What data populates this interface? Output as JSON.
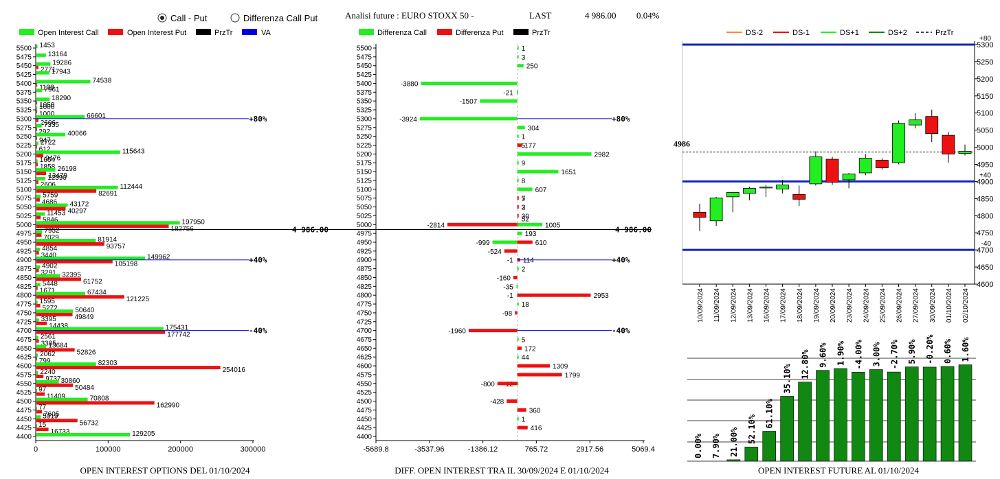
{
  "header": {
    "radio_call_put": "Call - Put",
    "radio_diff": "Differenza Call Put",
    "selected": "call_put",
    "analysis_title": "Analisi future : EURO STOXX 50 -",
    "last_label": "LAST",
    "last_value": "4 986.00",
    "change": "0.04%"
  },
  "colors": {
    "call": "#22ee22",
    "put": "#ee1111",
    "pricetr": "#000000",
    "va": "#0000dd",
    "dark_green": "#118811",
    "ds_minus2": "#ff8844",
    "ds_minus1": "#ee0000",
    "ds_plus1": "#22ee22",
    "ds_plus2": "#118811",
    "level": "#1122bb"
  },
  "chart_data": [
    {
      "type": "bar",
      "orientation": "horizontal",
      "title": "OPEN INTEREST OPTIONS DEL 01/10/2024",
      "legend": [
        "Open Interest Call",
        "Open Interest Put",
        "PrzTr",
        "VA"
      ],
      "strikes": [
        5500,
        5475,
        5450,
        5425,
        5400,
        5375,
        5350,
        5325,
        5300,
        5275,
        5250,
        5225,
        5200,
        5175,
        5150,
        5125,
        5100,
        5075,
        5050,
        5025,
        5000,
        4975,
        4950,
        4925,
        4900,
        4875,
        4850,
        4825,
        4800,
        4775,
        4750,
        4725,
        4700,
        4675,
        4650,
        4625,
        4600,
        4575,
        4550,
        4525,
        4500,
        4475,
        4450,
        4425,
        4400
      ],
      "series": [
        {
          "name": "Open Interest Call",
          "values": [
            1453,
            13164,
            19286,
            17943,
            74538,
            7961,
            18290,
            1000,
            66601,
            7335,
            40066,
            2722,
            115643,
            1664,
            26198,
            12390,
            112444,
            5759,
            43172,
            11453,
            197950,
            7952,
            81914,
            4854,
            149962,
            4902,
            32395,
            5448,
            67434,
            1595,
            50640,
            3395,
            175431,
            2561,
            13684,
            2062,
            82303,
            2240,
            30860,
            97,
            70808,
            77,
            5919,
            15,
            129205
          ]
        },
        {
          "name": "Open Interest Put",
          "values": [
            0,
            0,
            2771,
            0,
            1138,
            0,
            1050,
            1000,
            2606,
            292,
            947,
            612,
            9476,
            1858,
            13479,
            2606,
            82691,
            4686,
            40297,
            5846,
            182756,
            7029,
            93757,
            3440,
            105198,
            3291,
            61752,
            1671,
            121225,
            5272,
            49849,
            14438,
            177742,
            3385,
            52826,
            799,
            254016,
            9737,
            50484,
            11409,
            162990,
            7605,
            56732,
            16733,
            0
          ]
        }
      ],
      "price": 4986,
      "price_label": "4 986.00",
      "va_levels": [
        {
          "strike": 5300,
          "label": "+80%"
        },
        {
          "strike": 4900,
          "label": "+40%"
        },
        {
          "strike": 4700,
          "label": "-40%"
        }
      ],
      "xticks": [
        "0",
        "100000",
        "200000",
        "300000"
      ],
      "xlim": [
        0,
        300000
      ]
    },
    {
      "type": "bar",
      "orientation": "horizontal",
      "title": "DIFF. OPEN INTEREST TRA IL 30/09/2024 E 01/10/2024",
      "legend": [
        "Differenza Call",
        "Differenza Put",
        "PrzTr"
      ],
      "strikes": [
        5500,
        5475,
        5450,
        5425,
        5400,
        5375,
        5350,
        5325,
        5300,
        5275,
        5250,
        5225,
        5200,
        5175,
        5150,
        5125,
        5100,
        5075,
        5050,
        5025,
        5000,
        4975,
        4950,
        4925,
        4900,
        4875,
        4850,
        4825,
        4800,
        4775,
        4750,
        4725,
        4700,
        4675,
        4650,
        4625,
        4600,
        4575,
        4550,
        4525,
        4500,
        4475,
        4450,
        4425,
        4400
      ],
      "series": [
        {
          "name": "Differenza Call",
          "values": [
            1,
            3,
            250,
            null,
            -3880,
            -21,
            -1507,
            null,
            -3924,
            304,
            1,
            5,
            2982,
            9,
            1651,
            8,
            607,
            5,
            3,
            null,
            1005,
            193,
            -999,
            null,
            -1,
            2,
            null,
            -35,
            -1,
            18,
            null,
            null,
            null,
            5,
            null,
            44,
            null,
            null,
            -12,
            null,
            null,
            null,
            1,
            null,
            null
          ]
        },
        {
          "name": "Differenza Put",
          "values": [
            null,
            null,
            null,
            null,
            null,
            null,
            null,
            null,
            null,
            null,
            null,
            177,
            null,
            null,
            null,
            null,
            null,
            7,
            2,
            30,
            -2814,
            null,
            610,
            -524,
            114,
            null,
            -160,
            null,
            2953,
            null,
            -98,
            null,
            -1960,
            null,
            172,
            null,
            1309,
            1799,
            -800,
            null,
            -428,
            360,
            null,
            416,
            null
          ]
        }
      ],
      "extra_labels": [
        {
          "strike": 5025,
          "text": "52"
        }
      ],
      "price": 4986,
      "price_label": "4 986.00",
      "va_levels": [
        {
          "strike": 5300,
          "label": "+80%"
        },
        {
          "strike": 4900,
          "label": "+40%"
        },
        {
          "strike": 4700,
          "label": "-40%"
        }
      ],
      "xticks": [
        "-5689.8",
        "-3537.96",
        "-1386.12",
        "765.72",
        "2917.56",
        "5069.4"
      ],
      "xlim": [
        -5689.8,
        5069.4
      ]
    },
    {
      "type": "candlestick",
      "legend": [
        "DS-2",
        "DS-1",
        "DS+1",
        "DS+2",
        "PrzTr"
      ],
      "dates": [
        "10/09/2024",
        "11/09/2024",
        "12/09/2024",
        "13/09/2024",
        "16/09/2024",
        "17/09/2024",
        "18/09/2024",
        "19/09/2024",
        "20/09/2024",
        "23/09/2024",
        "24/09/2024",
        "25/09/2024",
        "26/09/2024",
        "27/09/2024",
        "30/09/2024",
        "01/10/2024",
        "02/10/2024"
      ],
      "candles": [
        {
          "o": 4810,
          "h": 4835,
          "l": 4755,
          "c": 4795
        },
        {
          "o": 4785,
          "h": 4855,
          "l": 4770,
          "c": 4852
        },
        {
          "o": 4855,
          "h": 4870,
          "l": 4810,
          "c": 4868
        },
        {
          "o": 4865,
          "h": 4885,
          "l": 4845,
          "c": 4880
        },
        {
          "o": 4882,
          "h": 4890,
          "l": 4855,
          "c": 4884
        },
        {
          "o": 4878,
          "h": 4905,
          "l": 4865,
          "c": 4890
        },
        {
          "o": 4862,
          "h": 4888,
          "l": 4828,
          "c": 4848
        },
        {
          "o": 4893,
          "h": 4988,
          "l": 4888,
          "c": 4972
        },
        {
          "o": 4965,
          "h": 4972,
          "l": 4890,
          "c": 4898
        },
        {
          "o": 4905,
          "h": 4925,
          "l": 4880,
          "c": 4922
        },
        {
          "o": 4925,
          "h": 4980,
          "l": 4918,
          "c": 4968
        },
        {
          "o": 4962,
          "h": 4968,
          "l": 4935,
          "c": 4940
        },
        {
          "o": 4955,
          "h": 5078,
          "l": 4950,
          "c": 5070
        },
        {
          "o": 5065,
          "h": 5100,
          "l": 5055,
          "c": 5080
        },
        {
          "o": 5090,
          "h": 5110,
          "l": 5015,
          "c": 5040
        },
        {
          "o": 5035,
          "h": 5045,
          "l": 4955,
          "c": 4980
        },
        {
          "o": 4982,
          "h": 5008,
          "l": 4976,
          "c": 4988
        }
      ],
      "price": 4986,
      "price_label": "4986",
      "levels": [
        {
          "value": 5300,
          "label": "+80"
        },
        {
          "value": 4900,
          "label": "+40"
        },
        {
          "value": 4700,
          "label": "-40"
        }
      ],
      "yticks": [
        5300,
        5250,
        5200,
        5150,
        5100,
        5050,
        5000,
        4950,
        4900,
        4850,
        4800,
        4750,
        4700,
        4650,
        4600
      ],
      "ylim": [
        4600,
        5310
      ]
    },
    {
      "type": "bar",
      "title": "OPEN INTEREST FUTURE AL 01/10/2024",
      "labels": [
        "0.00%",
        "7.90%",
        "21.00%",
        "52.10%",
        "61.10%",
        "35.10%",
        "12.80%",
        "9.60%",
        "1.90%",
        "-4.00%",
        "3.00%",
        "-2.70%",
        "5.90%",
        "-0.20%",
        "0.60%",
        "1.60%"
      ],
      "values": [
        0,
        0,
        0.7,
        6.9,
        14.5,
        31.5,
        38.4,
        44.1,
        45.0,
        43.2,
        44.5,
        43.3,
        45.8,
        45.7,
        46.0,
        46.8
      ]
    }
  ]
}
